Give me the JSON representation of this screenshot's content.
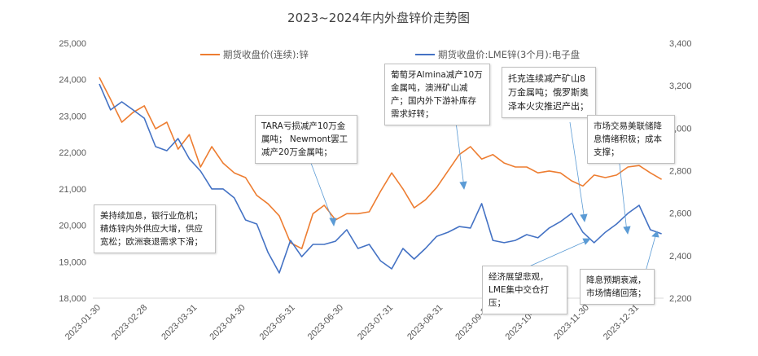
{
  "chart_data": {
    "type": "line",
    "title": "2023~2024年内外盘锌价走势图",
    "y_left": {
      "range": [
        18000,
        25000
      ],
      "ticks": [
        "18,000",
        "19,000",
        "20,000",
        "21,000",
        "22,000",
        "23,000",
        "24,000",
        "25,000"
      ],
      "tick_values": [
        18000,
        19000,
        20000,
        21000,
        22000,
        23000,
        24000,
        25000
      ]
    },
    "y_right": {
      "range": [
        2200,
        3400
      ],
      "ticks": [
        "2,200",
        "2,400",
        "2,600",
        "2,800",
        "3,000",
        "3,200",
        "3,400"
      ],
      "tick_values": [
        2200,
        2400,
        2600,
        2800,
        3000,
        3200,
        3400
      ]
    },
    "x_ticks": [
      "2023-01-30",
      "2023-02-28",
      "2023-03-31",
      "2023-04-30",
      "2023-05-31",
      "2023-06-30",
      "2023-07-31",
      "2023-08-31",
      "2023-09-30",
      "2023-10-31",
      "2023-11-30",
      "2023-12-31"
    ],
    "x_range": [
      "2023-01-30",
      "2024-01-15"
    ],
    "grid": "baseline only",
    "legend_placement": "top",
    "dates": [
      "2023-01-30",
      "2023-02-06",
      "2023-02-13",
      "2023-02-20",
      "2023-02-27",
      "2023-03-06",
      "2023-03-13",
      "2023-03-20",
      "2023-03-27",
      "2023-04-03",
      "2023-04-10",
      "2023-04-17",
      "2023-04-24",
      "2023-05-01",
      "2023-05-08",
      "2023-05-15",
      "2023-05-22",
      "2023-05-29",
      "2023-06-05",
      "2023-06-12",
      "2023-06-19",
      "2023-06-26",
      "2023-07-03",
      "2023-07-10",
      "2023-07-17",
      "2023-07-24",
      "2023-07-31",
      "2023-08-07",
      "2023-08-14",
      "2023-08-21",
      "2023-08-28",
      "2023-09-04",
      "2023-09-11",
      "2023-09-18",
      "2023-09-25",
      "2023-10-02",
      "2023-10-09",
      "2023-10-16",
      "2023-10-23",
      "2023-10-30",
      "2023-11-06",
      "2023-11-13",
      "2023-11-20",
      "2023-11-27",
      "2023-12-04",
      "2023-12-11",
      "2023-12-18",
      "2023-12-25",
      "2024-01-01",
      "2024-01-08",
      "2024-01-15"
    ],
    "series": [
      {
        "name": "期货收盘价(连续):锌",
        "axis": "left",
        "color": "#ED7D31",
        "values": [
          24060,
          23460,
          22830,
          23100,
          23280,
          22650,
          22830,
          22090,
          22490,
          21600,
          22160,
          21710,
          21440,
          21310,
          20820,
          20590,
          20260,
          19520,
          19360,
          20320,
          20550,
          20150,
          20320,
          20320,
          20370,
          20930,
          21440,
          21000,
          20480,
          20700,
          21040,
          21490,
          21940,
          22160,
          21820,
          21940,
          21710,
          21600,
          21600,
          21440,
          21490,
          21440,
          21220,
          21080,
          21380,
          21310,
          21380,
          21600,
          21640,
          21440,
          21260
        ]
      },
      {
        "name": "期货收盘价:LME锌(3个月):电子盘",
        "axis": "right",
        "color": "#4472C4",
        "values": [
          3208,
          3086,
          3124,
          3086,
          3047,
          2913,
          2894,
          2951,
          2856,
          2798,
          2714,
          2714,
          2672,
          2568,
          2549,
          2415,
          2319,
          2472,
          2395,
          2453,
          2453,
          2468,
          2522,
          2434,
          2453,
          2376,
          2338,
          2434,
          2384,
          2434,
          2491,
          2510,
          2537,
          2530,
          2645,
          2472,
          2461,
          2472,
          2499,
          2484,
          2530,
          2560,
          2599,
          2510,
          2461,
          2510,
          2549,
          2599,
          2637,
          2522,
          2503
        ]
      }
    ],
    "annotations": [
      "美持续加息，银行业危机；精炼锌内外供应大增，供应宽松；欧洲衰退需求下滑；",
      "TARA亏损减产10万金属吨； Newmont罢工减产20万金属吨；",
      "葡萄牙Almina减产10万金属吨，澳洲矿山减产；国内外下游补库存需求好转；",
      "托克连续减产矿山8万金属吨；俄罗斯奥泽本火灾推迟产出；",
      "市场交易美联储降息情绪积极；成本支撑；",
      "经济展望悲观，LME集中交仓打压；",
      "降息预期衰减，市场情绪回落；"
    ]
  }
}
